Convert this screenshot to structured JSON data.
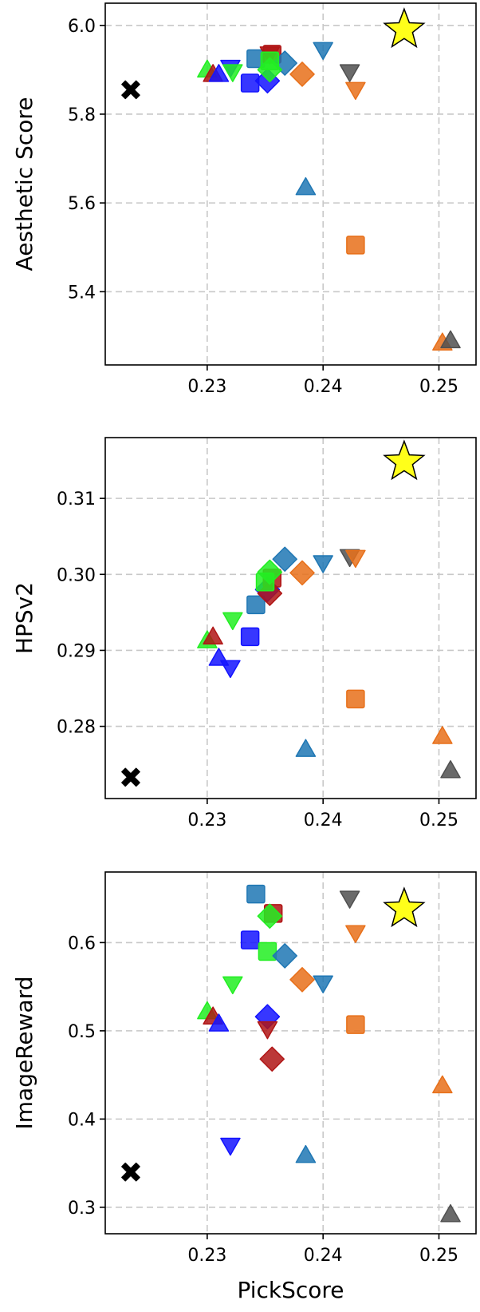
{
  "colors": {
    "blue": "#1f77b4",
    "orange": "#e8701a",
    "gray": "#505050",
    "brightblue": "#1414ff",
    "darkred": "#b01515",
    "green": "#22ee22",
    "star": "#ffff1a",
    "cross": "#000000"
  },
  "chart_data": [
    {
      "type": "scatter",
      "xlabel": "",
      "ylabel": "Aesthetic Score",
      "xlim": [
        0.2212,
        0.2532
      ],
      "ylim": [
        5.235,
        6.05
      ],
      "xticks": [
        "0.23",
        "0.24",
        "0.25"
      ],
      "xtick_values": [
        0.23,
        0.24,
        0.25
      ],
      "yticks": [
        "5.4",
        "5.6",
        "5.8",
        "6.0"
      ],
      "ytick_values": [
        5.4,
        5.6,
        5.8,
        6.0
      ],
      "grid": true,
      "points": [
        {
          "x": 0.2234,
          "y": 5.855,
          "marker": "x",
          "color": "cross"
        },
        {
          "x": 0.247,
          "y": 5.99,
          "marker": "star",
          "color": "star"
        },
        {
          "x": 0.23,
          "y": 5.9,
          "marker": "tri-up",
          "color": "green"
        },
        {
          "x": 0.2305,
          "y": 5.89,
          "marker": "tri-up",
          "color": "darkred"
        },
        {
          "x": 0.231,
          "y": 5.89,
          "marker": "tri-up",
          "color": "brightblue"
        },
        {
          "x": 0.232,
          "y": 5.905,
          "marker": "tri-down",
          "color": "brightblue"
        },
        {
          "x": 0.2322,
          "y": 5.895,
          "marker": "tri-down",
          "color": "green"
        },
        {
          "x": 0.2337,
          "y": 5.87,
          "marker": "square",
          "color": "brightblue"
        },
        {
          "x": 0.2342,
          "y": 5.925,
          "marker": "square",
          "color": "blue"
        },
        {
          "x": 0.2352,
          "y": 5.875,
          "marker": "diamond",
          "color": "brightblue"
        },
        {
          "x": 0.2354,
          "y": 5.935,
          "marker": "tri-down",
          "color": "darkred"
        },
        {
          "x": 0.2356,
          "y": 5.935,
          "marker": "square",
          "color": "darkred"
        },
        {
          "x": 0.2367,
          "y": 5.915,
          "marker": "diamond",
          "color": "blue"
        },
        {
          "x": 0.2354,
          "y": 5.92,
          "marker": "square",
          "color": "green"
        },
        {
          "x": 0.2354,
          "y": 5.9,
          "marker": "diamond",
          "color": "green"
        },
        {
          "x": 0.2382,
          "y": 5.89,
          "marker": "diamond",
          "color": "orange"
        },
        {
          "x": 0.2385,
          "y": 5.635,
          "marker": "tri-up",
          "color": "blue"
        },
        {
          "x": 0.24,
          "y": 5.945,
          "marker": "tri-down",
          "color": "blue"
        },
        {
          "x": 0.2423,
          "y": 5.895,
          "marker": "tri-down",
          "color": "gray"
        },
        {
          "x": 0.2428,
          "y": 5.855,
          "marker": "tri-down",
          "color": "orange"
        },
        {
          "x": 0.2428,
          "y": 5.505,
          "marker": "square",
          "color": "orange"
        },
        {
          "x": 0.2503,
          "y": 5.285,
          "marker": "tri-up",
          "color": "orange"
        },
        {
          "x": 0.251,
          "y": 5.29,
          "marker": "tri-up",
          "color": "gray"
        }
      ]
    },
    {
      "type": "scatter",
      "xlabel": "",
      "ylabel": "HPSv2",
      "xlim": [
        0.2212,
        0.2532
      ],
      "ylim": [
        0.2705,
        0.318
      ],
      "xticks": [
        "0.23",
        "0.24",
        "0.25"
      ],
      "xtick_values": [
        0.23,
        0.24,
        0.25
      ],
      "yticks": [
        "0.28",
        "0.29",
        "0.30",
        "0.31"
      ],
      "ytick_values": [
        0.28,
        0.29,
        0.3,
        0.31
      ],
      "grid": true,
      "points": [
        {
          "x": 0.2234,
          "y": 0.2733,
          "marker": "x",
          "color": "cross"
        },
        {
          "x": 0.247,
          "y": 0.3148,
          "marker": "star",
          "color": "star"
        },
        {
          "x": 0.23,
          "y": 0.2913,
          "marker": "tri-up",
          "color": "green"
        },
        {
          "x": 0.2305,
          "y": 0.2918,
          "marker": "tri-up",
          "color": "darkred"
        },
        {
          "x": 0.231,
          "y": 0.289,
          "marker": "tri-up",
          "color": "brightblue"
        },
        {
          "x": 0.232,
          "y": 0.2877,
          "marker": "tri-down",
          "color": "brightblue"
        },
        {
          "x": 0.2322,
          "y": 0.294,
          "marker": "tri-down",
          "color": "green"
        },
        {
          "x": 0.2337,
          "y": 0.2918,
          "marker": "square",
          "color": "brightblue"
        },
        {
          "x": 0.2342,
          "y": 0.296,
          "marker": "square",
          "color": "blue"
        },
        {
          "x": 0.2352,
          "y": 0.298,
          "marker": "diamond",
          "color": "brightblue"
        },
        {
          "x": 0.2354,
          "y": 0.2975,
          "marker": "diamond",
          "color": "darkred"
        },
        {
          "x": 0.2356,
          "y": 0.2995,
          "marker": "square",
          "color": "darkred"
        },
        {
          "x": 0.2367,
          "y": 0.302,
          "marker": "diamond",
          "color": "blue"
        },
        {
          "x": 0.235,
          "y": 0.299,
          "marker": "square",
          "color": "green"
        },
        {
          "x": 0.2354,
          "y": 0.3003,
          "marker": "diamond",
          "color": "green"
        },
        {
          "x": 0.2382,
          "y": 0.3002,
          "marker": "diamond",
          "color": "orange"
        },
        {
          "x": 0.2385,
          "y": 0.277,
          "marker": "tri-up",
          "color": "blue"
        },
        {
          "x": 0.24,
          "y": 0.3015,
          "marker": "tri-down",
          "color": "blue"
        },
        {
          "x": 0.2423,
          "y": 0.3023,
          "marker": "tri-down",
          "color": "gray"
        },
        {
          "x": 0.2428,
          "y": 0.3022,
          "marker": "tri-down",
          "color": "orange"
        },
        {
          "x": 0.2428,
          "y": 0.2836,
          "marker": "square",
          "color": "orange"
        },
        {
          "x": 0.2503,
          "y": 0.2787,
          "marker": "tri-up",
          "color": "orange"
        },
        {
          "x": 0.251,
          "y": 0.2742,
          "marker": "tri-up",
          "color": "gray"
        }
      ]
    },
    {
      "type": "scatter",
      "xlabel": "PickScore",
      "ylabel": "ImageReward",
      "xlim": [
        0.2212,
        0.2532
      ],
      "ylim": [
        0.27,
        0.68
      ],
      "xticks": [
        "0.23",
        "0.24",
        "0.25"
      ],
      "xtick_values": [
        0.23,
        0.24,
        0.25
      ],
      "yticks": [
        "0.3",
        "0.4",
        "0.5",
        "0.6"
      ],
      "ytick_values": [
        0.3,
        0.4,
        0.5,
        0.6
      ],
      "grid": true,
      "points": [
        {
          "x": 0.2234,
          "y": 0.34,
          "marker": "x",
          "color": "cross"
        },
        {
          "x": 0.247,
          "y": 0.638,
          "marker": "star",
          "color": "star"
        },
        {
          "x": 0.23,
          "y": 0.522,
          "marker": "tri-up",
          "color": "green"
        },
        {
          "x": 0.2305,
          "y": 0.516,
          "marker": "tri-up",
          "color": "darkred"
        },
        {
          "x": 0.231,
          "y": 0.508,
          "marker": "tri-up",
          "color": "brightblue"
        },
        {
          "x": 0.232,
          "y": 0.37,
          "marker": "tri-down",
          "color": "brightblue"
        },
        {
          "x": 0.2322,
          "y": 0.553,
          "marker": "tri-down",
          "color": "green"
        },
        {
          "x": 0.2337,
          "y": 0.603,
          "marker": "square",
          "color": "brightblue"
        },
        {
          "x": 0.2342,
          "y": 0.655,
          "marker": "square",
          "color": "blue"
        },
        {
          "x": 0.2352,
          "y": 0.516,
          "marker": "diamond",
          "color": "brightblue"
        },
        {
          "x": 0.2352,
          "y": 0.502,
          "marker": "tri-down",
          "color": "darkred"
        },
        {
          "x": 0.2356,
          "y": 0.468,
          "marker": "diamond",
          "color": "darkred"
        },
        {
          "x": 0.2357,
          "y": 0.633,
          "marker": "square",
          "color": "darkred"
        },
        {
          "x": 0.2354,
          "y": 0.63,
          "marker": "diamond",
          "color": "green"
        },
        {
          "x": 0.2352,
          "y": 0.59,
          "marker": "square",
          "color": "green"
        },
        {
          "x": 0.2367,
          "y": 0.585,
          "marker": "diamond",
          "color": "blue"
        },
        {
          "x": 0.2382,
          "y": 0.558,
          "marker": "diamond",
          "color": "orange"
        },
        {
          "x": 0.2385,
          "y": 0.359,
          "marker": "tri-up",
          "color": "blue"
        },
        {
          "x": 0.24,
          "y": 0.554,
          "marker": "tri-down",
          "color": "blue"
        },
        {
          "x": 0.2423,
          "y": 0.65,
          "marker": "tri-down",
          "color": "gray"
        },
        {
          "x": 0.2428,
          "y": 0.611,
          "marker": "tri-down",
          "color": "orange"
        },
        {
          "x": 0.2428,
          "y": 0.507,
          "marker": "square",
          "color": "orange"
        },
        {
          "x": 0.2503,
          "y": 0.438,
          "marker": "tri-up",
          "color": "orange"
        },
        {
          "x": 0.251,
          "y": 0.292,
          "marker": "tri-up",
          "color": "gray"
        }
      ]
    }
  ]
}
